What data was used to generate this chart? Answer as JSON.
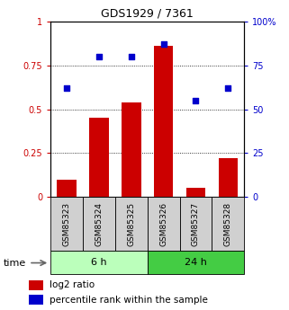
{
  "title": "GDS1929 / 7361",
  "categories": [
    "GSM85323",
    "GSM85324",
    "GSM85325",
    "GSM85326",
    "GSM85327",
    "GSM85328"
  ],
  "log2_ratio": [
    0.1,
    0.45,
    0.54,
    0.86,
    0.05,
    0.22
  ],
  "percentile_rank": [
    62,
    80,
    80,
    87,
    55,
    62
  ],
  "bar_color": "#cc0000",
  "dot_color": "#0000cc",
  "group_labels": [
    "6 h",
    "24 h"
  ],
  "group_colors": [
    "#bbffbb",
    "#44cc44"
  ],
  "ylim_left": [
    0,
    1.0
  ],
  "ylim_right": [
    0,
    100
  ],
  "yticks_left": [
    0,
    0.25,
    0.5,
    0.75,
    1.0
  ],
  "yticks_right": [
    0,
    25,
    50,
    75,
    100
  ],
  "ytick_labels_left": [
    "0",
    "0.25",
    "0.5",
    "0.75",
    "1"
  ],
  "ytick_labels_right": [
    "0",
    "25",
    "50",
    "75",
    "100%"
  ],
  "left_tick_color": "#cc0000",
  "right_tick_color": "#0000cc",
  "gridline_y": [
    0.25,
    0.5,
    0.75
  ],
  "time_label": "time",
  "legend_bar_label": "log2 ratio",
  "legend_dot_label": "percentile rank within the sample"
}
